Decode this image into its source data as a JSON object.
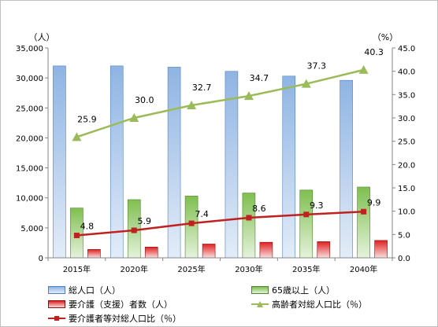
{
  "chart_data": {
    "type": "bar",
    "categories": [
      "2015年",
      "2020年",
      "2025年",
      "2030年",
      "2035年",
      "2040年"
    ],
    "series": [
      {
        "name": "総人口（人）",
        "type": "bar",
        "axis": "left",
        "color": "#8fb4e3",
        "values": [
          32000,
          32000,
          31800,
          31100,
          30300,
          29600
        ]
      },
      {
        "name": "65歳以上（人）",
        "type": "bar",
        "axis": "left",
        "color": "#7fbf4f",
        "values": [
          8300,
          9700,
          10300,
          10800,
          11300,
          11800
        ]
      },
      {
        "name": "要介護（支援）者数（人）",
        "type": "bar",
        "axis": "left",
        "color": "#e02020",
        "values": [
          1400,
          1800,
          2300,
          2600,
          2700,
          2900
        ]
      },
      {
        "name": "高齢者対総人口比（％）",
        "type": "line",
        "axis": "right",
        "color": "#9bbb59",
        "marker": "triangle",
        "values": [
          25.9,
          30.0,
          32.7,
          34.7,
          37.3,
          40.3
        ],
        "labels": [
          "25.9",
          "30.0",
          "32.7",
          "34.7",
          "37.3",
          "40.3"
        ]
      },
      {
        "name": "要介護者等対総人口比（％）",
        "type": "line",
        "axis": "right",
        "color": "#c0201f",
        "marker": "square",
        "values": [
          4.8,
          5.9,
          7.4,
          8.6,
          9.3,
          9.9
        ],
        "labels": [
          "4.8",
          "5.9",
          "7.4",
          "8.6",
          "9.3",
          "9.9"
        ]
      }
    ],
    "y_left": {
      "unit": "（人）",
      "min": 0,
      "max": 35000,
      "ticks": [
        "0",
        "5,000",
        "10,000",
        "15,000",
        "20,000",
        "25,000",
        "30,000",
        "35,000"
      ]
    },
    "y_right": {
      "unit": "（%）",
      "min": 0,
      "max": 45,
      "ticks": [
        "0.0",
        "5.0",
        "10.0",
        "15.0",
        "20.0",
        "25.0",
        "30.0",
        "35.0",
        "40.0",
        "45.0"
      ]
    },
    "grid": false,
    "legend_position": "bottom"
  }
}
